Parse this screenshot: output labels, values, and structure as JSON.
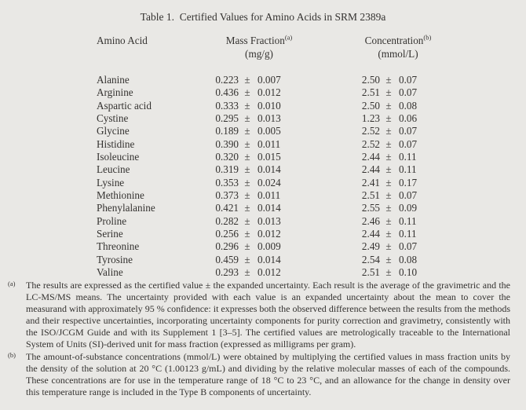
{
  "title": "Table 1.  Certified Values for Amino Acids in SRM 2389a",
  "table": {
    "col_amino_acid": "Amino Acid",
    "col_mass_fraction": "Mass Fraction",
    "col_mass_fraction_note": "(a)",
    "col_mass_fraction_unit": "(mg/g)",
    "col_concentration": "Concentration",
    "col_concentration_note": "(b)",
    "col_concentration_unit": "(mmol/L)",
    "plus_minus": "±",
    "rows": [
      {
        "name": "Alanine",
        "mass_fraction": "0.223",
        "mass_fraction_unc": "0.007",
        "concentration": "2.50",
        "concentration_unc": "0.07"
      },
      {
        "name": "Arginine",
        "mass_fraction": "0.436",
        "mass_fraction_unc": "0.012",
        "concentration": "2.51",
        "concentration_unc": "0.07"
      },
      {
        "name": "Aspartic acid",
        "mass_fraction": "0.333",
        "mass_fraction_unc": "0.010",
        "concentration": "2.50",
        "concentration_unc": "0.08"
      },
      {
        "name": "Cystine",
        "mass_fraction": "0.295",
        "mass_fraction_unc": "0.013",
        "concentration": "1.23",
        "concentration_unc": "0.06"
      },
      {
        "name": "Glycine",
        "mass_fraction": "0.189",
        "mass_fraction_unc": "0.005",
        "concentration": "2.52",
        "concentration_unc": "0.07"
      },
      {
        "name": "Histidine",
        "mass_fraction": "0.390",
        "mass_fraction_unc": "0.011",
        "concentration": "2.52",
        "concentration_unc": "0.07"
      },
      {
        "name": "Isoleucine",
        "mass_fraction": "0.320",
        "mass_fraction_unc": "0.015",
        "concentration": "2.44",
        "concentration_unc": "0.11"
      },
      {
        "name": "Leucine",
        "mass_fraction": "0.319",
        "mass_fraction_unc": "0.014",
        "concentration": "2.44",
        "concentration_unc": "0.11"
      },
      {
        "name": "Lysine",
        "mass_fraction": "0.353",
        "mass_fraction_unc": "0.024",
        "concentration": "2.41",
        "concentration_unc": "0.17"
      },
      {
        "name": "Methionine",
        "mass_fraction": "0.373",
        "mass_fraction_unc": "0.011",
        "concentration": "2.51",
        "concentration_unc": "0.07"
      },
      {
        "name": "Phenylalanine",
        "mass_fraction": "0.421",
        "mass_fraction_unc": "0.014",
        "concentration": "2.55",
        "concentration_unc": "0.09"
      },
      {
        "name": "Proline",
        "mass_fraction": "0.282",
        "mass_fraction_unc": "0.013",
        "concentration": "2.46",
        "concentration_unc": "0.11"
      },
      {
        "name": "Serine",
        "mass_fraction": "0.256",
        "mass_fraction_unc": "0.012",
        "concentration": "2.44",
        "concentration_unc": "0.11"
      },
      {
        "name": "Threonine",
        "mass_fraction": "0.296",
        "mass_fraction_unc": "0.009",
        "concentration": "2.49",
        "concentration_unc": "0.07"
      },
      {
        "name": "Tyrosine",
        "mass_fraction": "0.459",
        "mass_fraction_unc": "0.014",
        "concentration": "2.54",
        "concentration_unc": "0.08"
      },
      {
        "name": "Valine",
        "mass_fraction": "0.293",
        "mass_fraction_unc": "0.012",
        "concentration": "2.51",
        "concentration_unc": "0.10"
      }
    ]
  },
  "footnotes": [
    {
      "marker": "(a)",
      "text": "The results are expressed as the certified value ± the expanded uncertainty.  Each result is the average of the gravimetric and the LC-MS/MS means.  The uncertainty provided with each value is an expanded uncertainty about the mean to cover the measurand with approximately 95 % confidence:  it expresses both the observed difference between the results from the methods and their respective uncertainties, incorporating uncertainty components for purity correction and gravimetry, consistently with the ISO/JCGM Guide and with its Supplement 1 [3–5].  The certified values are metrologically traceable to the International System of Units (SI)-derived unit for mass fraction (expressed as milligrams per gram)."
    },
    {
      "marker": "(b)",
      "text": "The amount-of-substance concentrations (mmol/L) were obtained by multiplying the certified values in mass fraction units by the density of the solution at 20 °C (1.00123 g/mL) and dividing by the relative molecular masses of each of the compounds.  These concentrations are for use in the temperature range of 18 °C to 23 °C, and an allowance for the change in density over this temperature range is included in the Type B components of uncertainty."
    }
  ],
  "colors": {
    "page_bg": "#e9e8e5",
    "text": "#343230"
  }
}
